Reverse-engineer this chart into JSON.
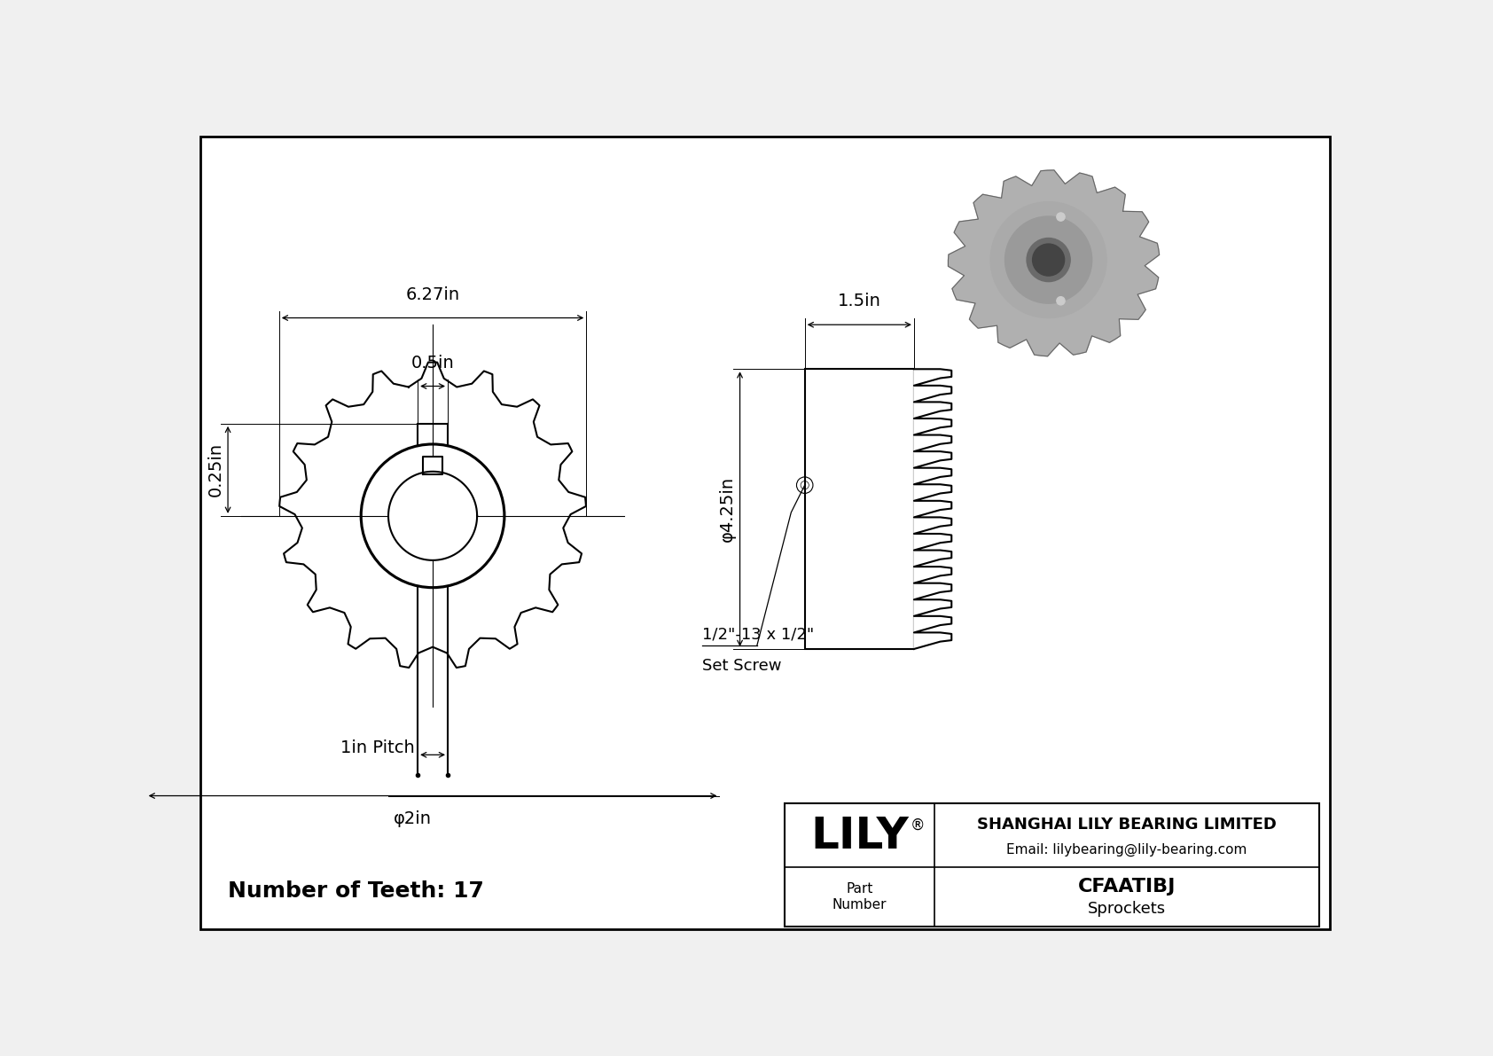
{
  "bg_color": "#f0f0f0",
  "page_color": "#ffffff",
  "line_color": "#000000",
  "part_number": "CFAATIBJ",
  "category": "Sprockets",
  "company": "SHANGHAI LILY BEARING LIMITED",
  "email": "Email: lilybearing@lily-bearing.com",
  "num_teeth": 17,
  "dim_outer": "6.27in",
  "dim_hub": "0.5in",
  "dim_offset": "0.25in",
  "dim_pitch": "1in Pitch",
  "dim_bore": "φ2in",
  "dim_side_width": "1.5in",
  "dim_side_od": "φ4.25in",
  "dim_set_screw_line1": "1/2\"-13 x 1/2\"",
  "dim_set_screw_line2": "Set Screw"
}
